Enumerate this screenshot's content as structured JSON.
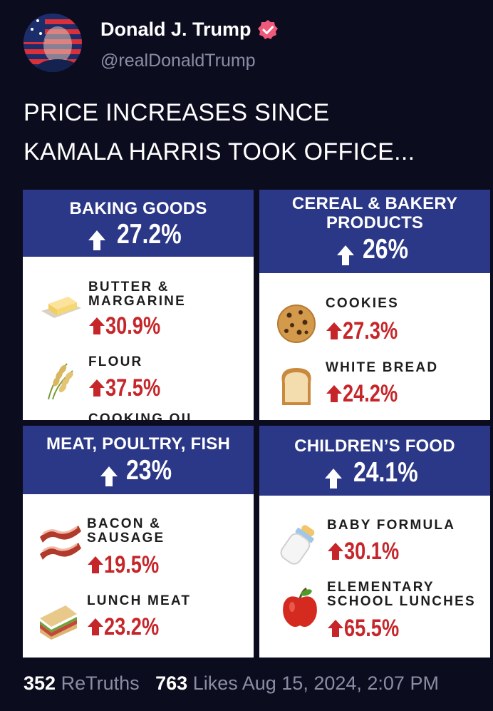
{
  "author": {
    "name": "Donald J. Trump",
    "handle": "@realDonaldTrump"
  },
  "post": {
    "line1": "PRICE INCREASES SINCE",
    "line2": "KAMALA HARRIS TOOK OFFICE..."
  },
  "cards": {
    "baking": {
      "title": "BAKING GOODS",
      "pct": "27.2%",
      "items": [
        {
          "label1": "BUTTER &",
          "label2": "MARGARINE",
          "pct": "30.9%",
          "icon": "butter-icon"
        },
        {
          "label1": "FLOUR",
          "pct": "37.5%",
          "icon": "wheat-icon"
        },
        {
          "label1": "COOKING OIL"
        }
      ]
    },
    "cereal": {
      "title1": "CEREAL & BAKERY",
      "title2": "PRODUCTS",
      "pct": "26%",
      "items": [
        {
          "label1": "COOKIES",
          "pct": "27.3%",
          "icon": "cookie-icon"
        },
        {
          "label1": "WHITE BREAD",
          "pct": "24.2%",
          "icon": "bread-icon"
        }
      ]
    },
    "meat": {
      "title": "MEAT, POULTRY, FISH",
      "pct": "23%",
      "items": [
        {
          "label1": "BACON &",
          "label2": "SAUSAGE",
          "pct": "19.5%",
          "icon": "bacon-icon"
        },
        {
          "label1": "LUNCH MEAT",
          "pct": "23.2%",
          "icon": "sandwich-icon"
        }
      ]
    },
    "children": {
      "title": "CHILDREN’S FOOD",
      "pct": "24.1%",
      "items": [
        {
          "label1": "BABY FORMULA",
          "pct": "30.1%",
          "icon": "baby-bottle-icon"
        },
        {
          "label1": "ELEMENTARY",
          "label2": "SCHOOL LUNCHES",
          "pct": "65.5%",
          "icon": "apple-icon"
        }
      ]
    }
  },
  "stats": {
    "retruths_count": "352",
    "retruths_label": "ReTruths",
    "likes_count": "763",
    "likes_label": "Likes",
    "timestamp": "Aug 15, 2024, 2:07 PM"
  },
  "colors": {
    "background": "#0c0c1f",
    "header_blue": "#2b3787",
    "increase_red": "#c6262a",
    "verified_pink": "#ef5a7a"
  }
}
